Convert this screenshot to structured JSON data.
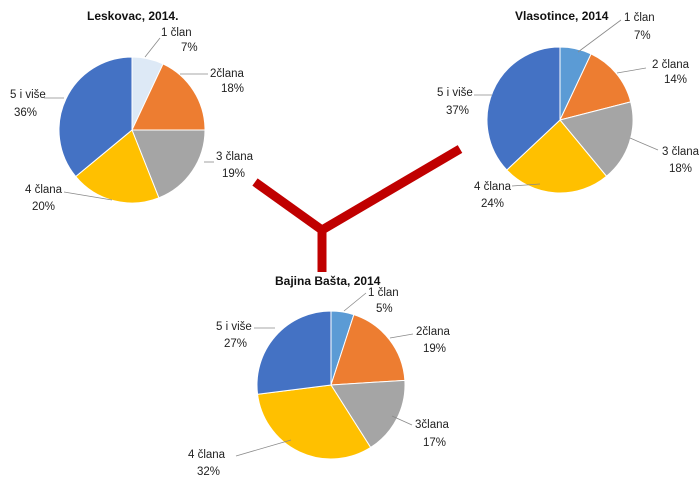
{
  "connector_color": "#c00000",
  "chart_data": [
    {
      "type": "pie",
      "title": "Leskovac, 2014.",
      "slices": [
        {
          "name": "1 član",
          "value": 7,
          "label": "7%",
          "color": "#dde9f6"
        },
        {
          "name": "2člana",
          "value": 18,
          "label": "18%",
          "color": "#ed7d31"
        },
        {
          "name": "3 člana",
          "value": 19,
          "label": "19%",
          "color": "#a5a5a5"
        },
        {
          "name": "4 člana",
          "value": 20,
          "label": "20%",
          "color": "#ffc000"
        },
        {
          "name": "5 i više",
          "value": 36,
          "label": "36%",
          "color": "#4472c4"
        }
      ]
    },
    {
      "type": "pie",
      "title": "Vlasotince, 2014",
      "slices": [
        {
          "name": "1 član",
          "value": 7,
          "label": "7%",
          "color": "#5b9bd5"
        },
        {
          "name": "2 člana",
          "value": 14,
          "label": "14%",
          "color": "#ed7d31"
        },
        {
          "name": "3 člana",
          "value": 18,
          "label": "18%",
          "color": "#a5a5a5"
        },
        {
          "name": "4 člana",
          "value": 24,
          "label": "24%",
          "color": "#ffc000"
        },
        {
          "name": "5 i više",
          "value": 37,
          "label": "37%",
          "color": "#4472c4"
        }
      ]
    },
    {
      "type": "pie",
      "title": "Bajina Bašta, 2014",
      "slices": [
        {
          "name": "1 član",
          "value": 5,
          "label": "5%",
          "color": "#5b9bd5"
        },
        {
          "name": "2člana",
          "value": 19,
          "label": "19%",
          "color": "#ed7d31"
        },
        {
          "name": "3člana",
          "value": 17,
          "label": "17%",
          "color": "#a5a5a5"
        },
        {
          "name": "4 člana",
          "value": 32,
          "label": "32%",
          "color": "#ffc000"
        },
        {
          "name": "5 i više",
          "value": 27,
          "label": "27%",
          "color": "#4472c4"
        }
      ]
    }
  ]
}
